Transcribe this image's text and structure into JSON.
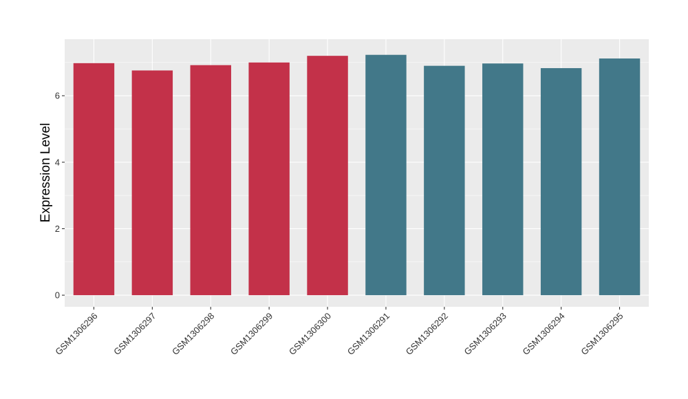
{
  "chart_data": {
    "type": "bar",
    "ylabel": "Expression Level",
    "xlabel": "",
    "categories": [
      "GSM1306296",
      "GSM1306297",
      "GSM1306298",
      "GSM1306299",
      "GSM1306300",
      "GSM1306291",
      "GSM1306292",
      "GSM1306293",
      "GSM1306294",
      "GSM1306295"
    ],
    "values": [
      6.98,
      6.76,
      6.92,
      7.0,
      7.2,
      7.23,
      6.9,
      6.97,
      6.83,
      7.12
    ],
    "bar_colors": [
      "#c33149",
      "#c33149",
      "#c33149",
      "#c33149",
      "#c33149",
      "#427889",
      "#427889",
      "#427889",
      "#427889",
      "#427889"
    ],
    "ylim": [
      -0.35,
      7.7
    ],
    "yticks": [
      0,
      2,
      4,
      6
    ],
    "grid": true,
    "panel_background": "#ebebeb",
    "grid_color": "#ffffff"
  }
}
